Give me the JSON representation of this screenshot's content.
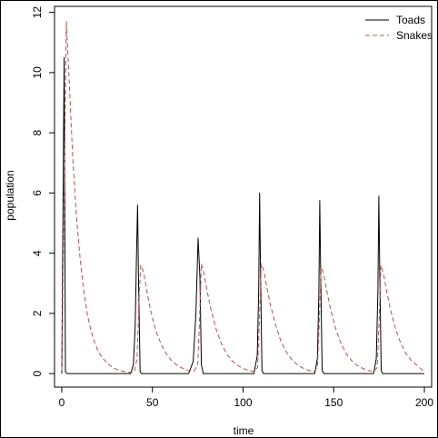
{
  "chart_data": {
    "type": "line",
    "title": "",
    "xlabel": "time",
    "ylabel": "population",
    "xlim": [
      -4,
      204
    ],
    "ylim": [
      -0.45,
      12.2
    ],
    "x_ticks": [
      0,
      50,
      100,
      150,
      200
    ],
    "y_ticks": [
      0,
      2,
      4,
      6,
      8,
      10,
      12
    ],
    "grid": false,
    "legend": {
      "position": "top-right",
      "entries": [
        {
          "label": "Toads",
          "color": "#000000",
          "style": "solid"
        },
        {
          "label": "Snakes",
          "color": "#c0504d",
          "style": "dashed"
        }
      ]
    },
    "series": [
      {
        "name": "Toads",
        "color": "#000000",
        "style": "solid",
        "x": [
          0,
          1.3,
          2,
          3,
          5,
          38,
          39.5,
          40.5,
          41.2,
          41.8,
          42.3,
          43.2,
          44,
          60,
          70,
          72.5,
          74,
          75.2,
          76.2,
          77,
          78,
          100,
          106,
          107.8,
          108.6,
          109.1,
          109.6,
          110.4,
          111.3,
          130,
          139.5,
          141,
          141.8,
          142.3,
          142.8,
          143.6,
          144.5,
          165,
          172,
          173.5,
          174.4,
          174.9,
          175.4,
          176.2,
          177,
          200
        ],
        "y": [
          0,
          10.5,
          0.05,
          0,
          0,
          0,
          0.3,
          1.6,
          3.9,
          5.6,
          3.2,
          0.05,
          0,
          0,
          0,
          0.4,
          2.0,
          4.5,
          3.2,
          0.3,
          0,
          0,
          0,
          0.6,
          2.8,
          6.0,
          3.4,
          0.1,
          0,
          0,
          0,
          0.5,
          2.7,
          5.75,
          3.3,
          0.1,
          0,
          0,
          0,
          0.5,
          2.8,
          5.9,
          3.4,
          0.1,
          0,
          0
        ]
      },
      {
        "name": "Snakes",
        "color": "#c0504d",
        "style": "dashed",
        "x": [
          0,
          1.5,
          2.5,
          4,
          6,
          8,
          10,
          12,
          14,
          16,
          18,
          20,
          22,
          25,
          28,
          31,
          34,
          37,
          40,
          41.5,
          42.5,
          43.5,
          45,
          47,
          49,
          52,
          55,
          58,
          61,
          64,
          67,
          70,
          73,
          75,
          76,
          77,
          78.5,
          80,
          82,
          85,
          88,
          91,
          94,
          97,
          100,
          103,
          106,
          108,
          109,
          110,
          111.5,
          113,
          115,
          118,
          121,
          124,
          127,
          130,
          133,
          136,
          139,
          141,
          142,
          143,
          144.5,
          146,
          148,
          151,
          154,
          157,
          160,
          163,
          166,
          169,
          172,
          174,
          175,
          176,
          177.5,
          179,
          181,
          184,
          187,
          190,
          193,
          196,
          200
        ],
        "y": [
          0.1,
          7.0,
          11.7,
          9.8,
          7.2,
          5.3,
          3.9,
          2.8,
          2.0,
          1.45,
          1.05,
          0.75,
          0.55,
          0.35,
          0.2,
          0.12,
          0.07,
          0.04,
          0.05,
          0.5,
          2.3,
          3.6,
          3.4,
          2.7,
          2.1,
          1.4,
          0.95,
          0.62,
          0.4,
          0.26,
          0.16,
          0.1,
          0.08,
          0.3,
          1.8,
          3.65,
          3.3,
          2.8,
          2.2,
          1.5,
          1.0,
          0.65,
          0.42,
          0.27,
          0.17,
          0.1,
          0.07,
          0.2,
          1.8,
          3.65,
          3.4,
          2.9,
          2.3,
          1.6,
          1.05,
          0.7,
          0.45,
          0.29,
          0.18,
          0.11,
          0.07,
          0.2,
          1.7,
          3.55,
          3.3,
          2.8,
          2.2,
          1.5,
          1.0,
          0.65,
          0.42,
          0.27,
          0.17,
          0.1,
          0.07,
          0.2,
          1.7,
          3.6,
          3.3,
          2.8,
          2.2,
          1.5,
          1.0,
          0.65,
          0.42,
          0.27,
          0.05
        ]
      }
    ]
  }
}
